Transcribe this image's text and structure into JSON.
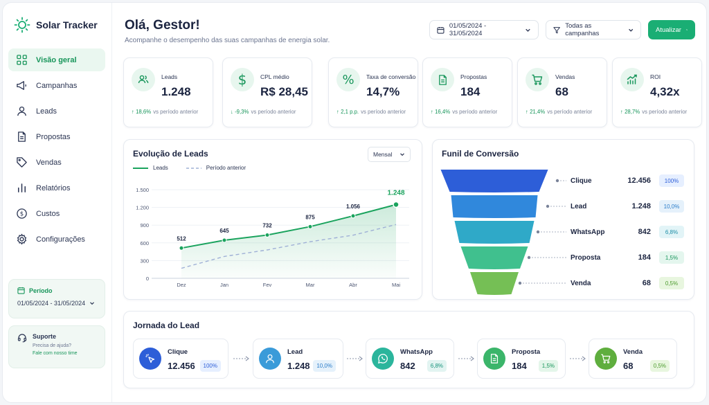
{
  "brand": {
    "name": "Solar Tracker"
  },
  "sidebar": {
    "items": [
      {
        "label": "Visão geral",
        "icon": "dashboard-icon",
        "active": true
      },
      {
        "label": "Campanhas",
        "icon": "megaphone-icon"
      },
      {
        "label": "Leads",
        "icon": "user-icon"
      },
      {
        "label": "Propostas",
        "icon": "document-icon"
      },
      {
        "label": "Vendas",
        "icon": "tag-icon"
      },
      {
        "label": "Relatórios",
        "icon": "bar-chart-icon"
      },
      {
        "label": "Custos",
        "icon": "dollar-icon"
      },
      {
        "label": "Configurações",
        "icon": "gear-icon"
      }
    ],
    "period": {
      "title": "Período",
      "value": "01/05/2024 - 31/05/2024"
    },
    "support": {
      "title": "Suporte",
      "subtitle": "Precisa de ajuda?",
      "link": "Fale com nosso time"
    }
  },
  "header": {
    "greeting": "Olá, Gestor!",
    "subtitle": "Acompanhe o desempenho das suas campanhas de energia solar.",
    "date_range": "01/05/2024 - 31/05/2024",
    "campaign_filter": "Todas as campanhas",
    "refresh_label": "Atualizar"
  },
  "kpis": [
    {
      "label": "Leads",
      "value": "1.248",
      "delta": "18,6%",
      "direction": "up",
      "compare": "vs período anterior",
      "icon": "users-icon"
    },
    {
      "label": "CPL médio",
      "value": "R$ 28,45",
      "delta": "-9,3%",
      "direction": "down",
      "compare": "vs período anterior",
      "icon": "dollar-icon"
    },
    {
      "label": "Taxa de conversão",
      "value": "14,7%",
      "delta": "2,1 p.p.",
      "direction": "up",
      "compare": "vs período anterior",
      "icon": "percent-icon"
    },
    {
      "label": "Propostas",
      "value": "184",
      "delta": "16,4%",
      "direction": "up",
      "compare": "vs período anterior",
      "icon": "document-icon"
    },
    {
      "label": "Vendas",
      "value": "68",
      "delta": "21,4%",
      "direction": "up",
      "compare": "vs período anterior",
      "icon": "cart-icon"
    },
    {
      "label": "ROI",
      "value": "4,32x",
      "delta": "28,7%",
      "direction": "up",
      "compare": "vs período anterior",
      "icon": "trend-chart-icon"
    }
  ],
  "leads_chart": {
    "title": "Evolução de Leads",
    "period_select": "Mensal",
    "legend": {
      "current": "Leads",
      "previous": "Período anterior"
    }
  },
  "chart_data": {
    "type": "line",
    "categories": [
      "Dez",
      "Jan",
      "Fev",
      "Mar",
      "Abr",
      "Mai"
    ],
    "series": [
      {
        "name": "Leads",
        "values": [
          512,
          645,
          732,
          875,
          1056,
          1248
        ],
        "labels": [
          "512",
          "645",
          "732",
          "875",
          "1.056",
          "1.248"
        ]
      },
      {
        "name": "Período anterior",
        "values": [
          170,
          370,
          480,
          620,
          730,
          910
        ]
      }
    ],
    "yticks": [
      0,
      300,
      600,
      900,
      1200,
      1500
    ],
    "ytick_labels": [
      "0",
      "300",
      "600",
      "900",
      "1.200",
      "1.500"
    ],
    "ylim": [
      0,
      1500
    ],
    "colors": {
      "current": "#1aa35d",
      "previous": "#9fb0d6"
    }
  },
  "funnel": {
    "title": "Funil de Conversão",
    "stages": [
      {
        "label": "Clique",
        "value": "12.456",
        "pct": "100%",
        "color": "#2d5ed8",
        "badge_bg": "#e6efff",
        "badge_fg": "#2d5ed8"
      },
      {
        "label": "Lead",
        "value": "1.248",
        "pct": "10,0%",
        "color": "#3088dc",
        "badge_bg": "#e5f1fb",
        "badge_fg": "#2a7cc9"
      },
      {
        "label": "WhatsApp",
        "value": "842",
        "pct": "6,8%",
        "color": "#2fa9c8",
        "badge_bg": "#e2f4f7",
        "badge_fg": "#1c8da6"
      },
      {
        "label": "Proposta",
        "value": "184",
        "pct": "1,5%",
        "color": "#40c08e",
        "badge_bg": "#e4f6ee",
        "badge_fg": "#17955a"
      },
      {
        "label": "Venda",
        "value": "68",
        "pct": "0,5%",
        "color": "#75bf55",
        "badge_bg": "#e8f6df",
        "badge_fg": "#4b9a2c"
      }
    ]
  },
  "journey": {
    "title": "Jornada do Lead",
    "steps": [
      {
        "label": "Clique",
        "value": "12.456",
        "pct": "100%",
        "icon": "cursor-click-icon",
        "color": "#2d5ed8",
        "badge_bg": "#e6efff",
        "badge_fg": "#2d5ed8"
      },
      {
        "label": "Lead",
        "value": "1.248",
        "pct": "10,0%",
        "icon": "user-icon",
        "color": "#3a9bd9",
        "badge_bg": "#e5f1fb",
        "badge_fg": "#2a7cc9"
      },
      {
        "label": "WhatsApp",
        "value": "842",
        "pct": "6,8%",
        "icon": "whatsapp-icon",
        "color": "#2bb59c",
        "badge_bg": "#e2f4f1",
        "badge_fg": "#17937c"
      },
      {
        "label": "Proposta",
        "value": "184",
        "pct": "1,5%",
        "icon": "document-icon",
        "color": "#3bb56a",
        "badge_bg": "#e4f6ea",
        "badge_fg": "#17955a"
      },
      {
        "label": "Venda",
        "value": "68",
        "pct": "0,5%",
        "icon": "cart-icon",
        "color": "#5fae3e",
        "badge_bg": "#e8f6df",
        "badge_fg": "#4b9a2c"
      }
    ]
  }
}
